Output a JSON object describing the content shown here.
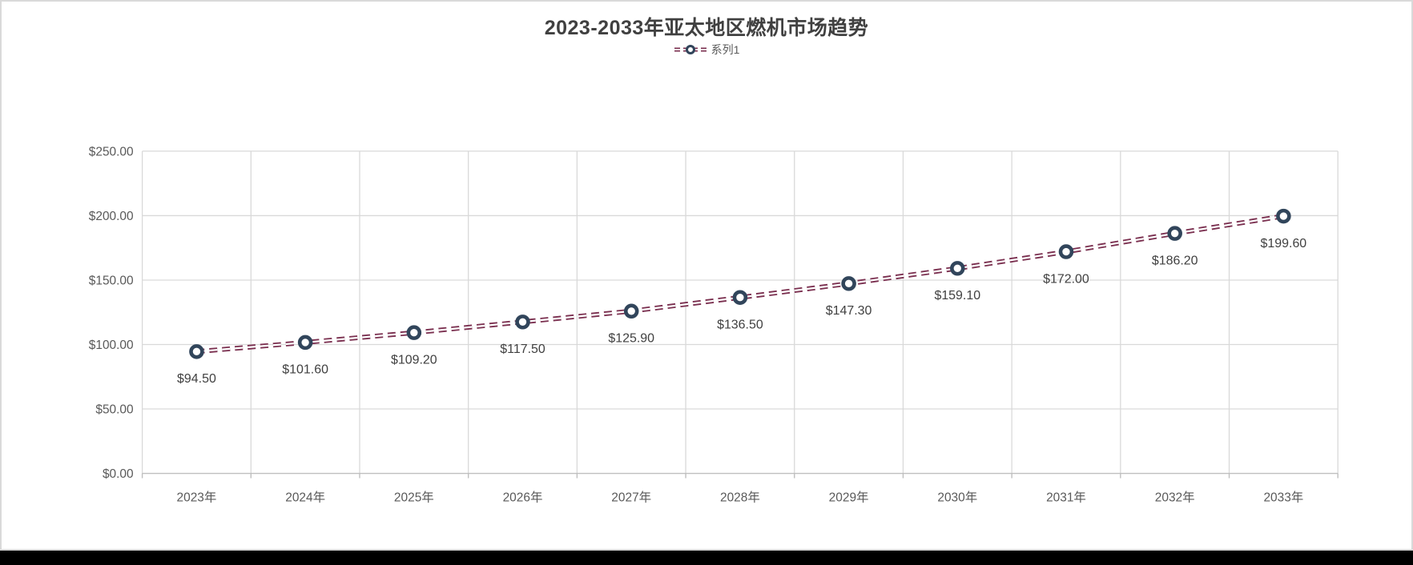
{
  "window": {
    "background": "#ffffff",
    "border_color": "#d9d9d9",
    "bottom_bar_color": "#000000"
  },
  "chart_data": {
    "type": "line",
    "title": "2023-2033年亚太地区燃机市场趋势",
    "categories": [
      "2023年",
      "2024年",
      "2025年",
      "2026年",
      "2027年",
      "2028年",
      "2029年",
      "2030年",
      "2031年",
      "2032年",
      "2033年"
    ],
    "series": [
      {
        "name": "系列1",
        "values": [
          94.5,
          101.6,
          109.2,
          117.5,
          125.9,
          136.5,
          147.3,
          159.1,
          172.0,
          186.2,
          199.6
        ],
        "data_labels": [
          "$94.50",
          "$101.60",
          "$109.20",
          "$117.50",
          "$125.90",
          "$136.50",
          "$147.30",
          "$159.10",
          "$172.00",
          "$186.20",
          "$199.60"
        ]
      }
    ],
    "ylim": [
      0,
      250
    ],
    "y_tick_step": 50,
    "y_tick_labels": [
      "$0.00",
      "$50.00",
      "$100.00",
      "$150.00",
      "$200.00",
      "$250.00"
    ],
    "grid": true,
    "legend_position": "top",
    "line_style": "double-dashed",
    "marker_style": "circle-ring",
    "colors": {
      "line": "#7a2f4f",
      "line_inner": "#ffffff",
      "marker_ring": "#31455b",
      "marker_fill": "#ffffff",
      "gridline": "#d9d9d9",
      "axis_line": "#bfbfbf",
      "title_text": "#404040",
      "axis_text": "#595959",
      "data_label_text": "#404040",
      "legend_text": "#595959"
    }
  }
}
